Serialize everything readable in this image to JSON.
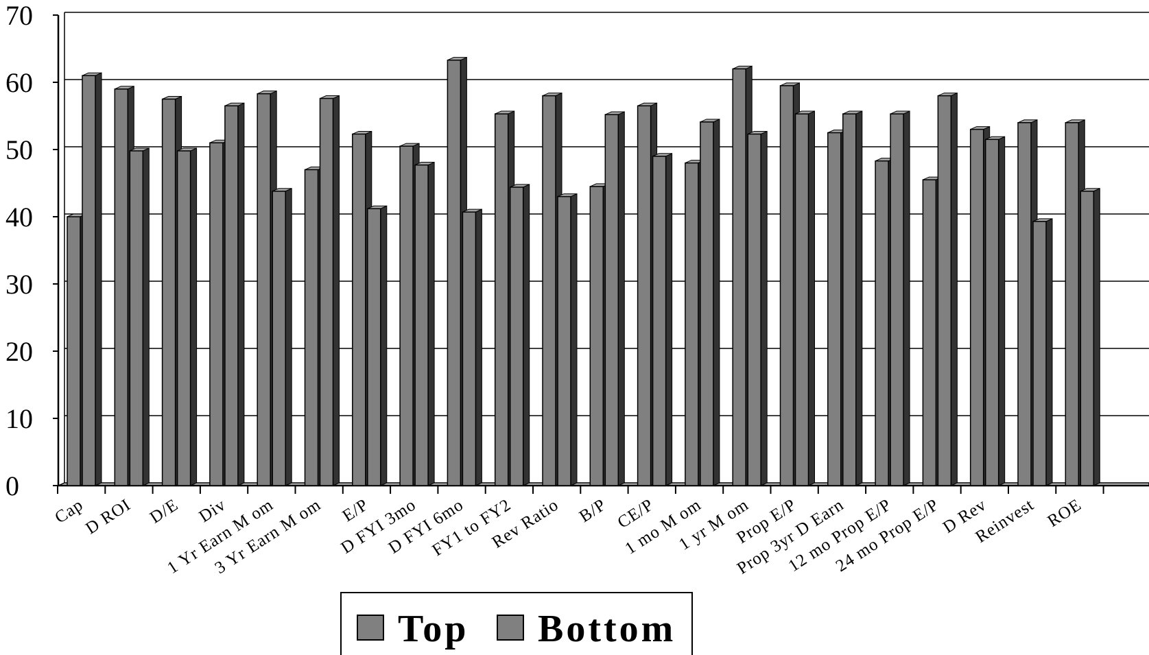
{
  "chart_data": {
    "type": "bar",
    "categories": [
      "Cap",
      "D ROI",
      "D/E",
      "Div",
      "1 Yr Earn M om",
      "3 Yr Earn M om",
      "E/P",
      "D FYI 3mo",
      "D FYI 6mo",
      "FY1 to FY2",
      "Rev Ratio",
      "B/P",
      "CE/P",
      "1 mo M om",
      "1 yr M om",
      "Prop E/P",
      "Prop 3yr D Earn",
      "12 mo Prop E/P",
      "24 mo Prop E/P",
      "D Rev",
      "Reinvest",
      "ROE"
    ],
    "series": [
      {
        "name": "Top",
        "values": [
          40,
          59,
          57.5,
          51,
          58.3,
          47,
          52.3,
          50.5,
          63.3,
          55.3,
          58,
          44.5,
          56.5,
          48,
          62,
          59.5,
          52.5,
          48.3,
          45.5,
          53,
          54,
          54
        ],
        "color": "#808080"
      },
      {
        "name": "Bottom",
        "values": [
          61,
          49.8,
          49.8,
          56.5,
          43.8,
          57.6,
          41.2,
          47.7,
          40.7,
          44.4,
          43,
          55.2,
          49,
          54.1,
          52.3,
          55.3,
          55.3,
          55.3,
          58,
          51.5,
          39.3,
          43.8
        ],
        "color": "#808080"
      }
    ],
    "ylim": [
      0,
      70
    ],
    "yticks": [
      0,
      10,
      20,
      30,
      40,
      50,
      60,
      70
    ],
    "grid": true,
    "legend_position": "bottom-center",
    "legend_labels": [
      "Top",
      "Bottom"
    ],
    "bar_style": "3d"
  }
}
